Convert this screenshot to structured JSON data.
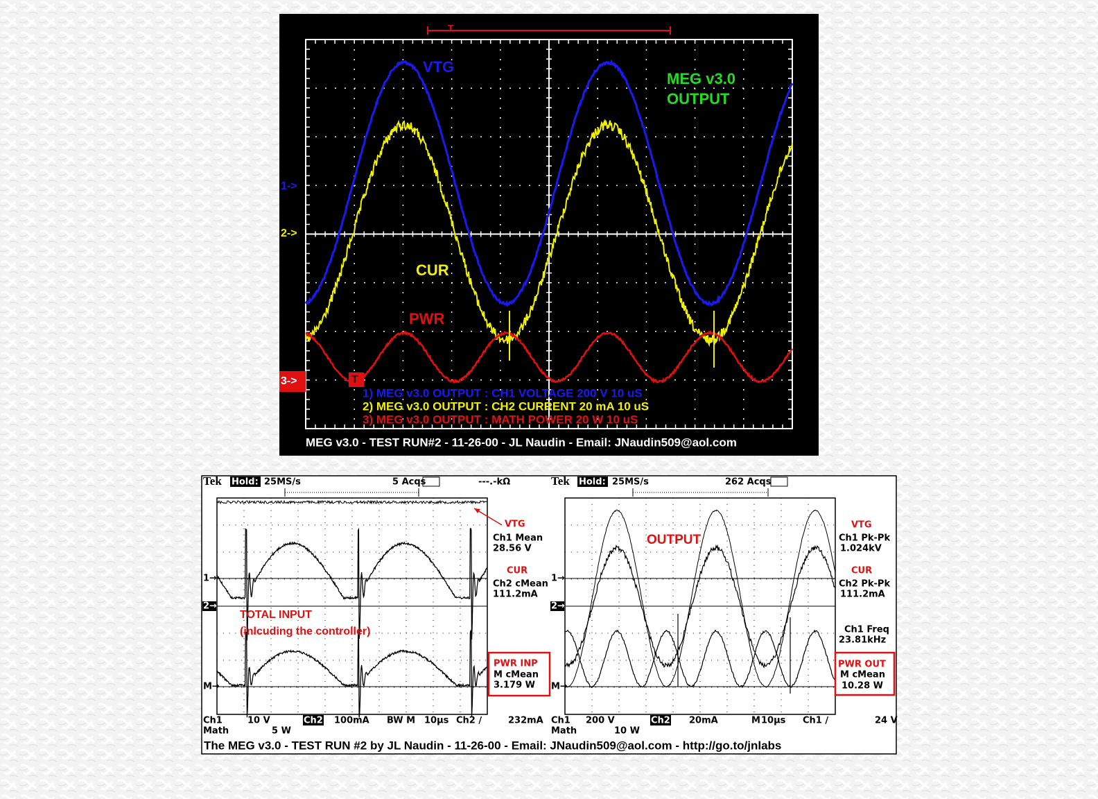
{
  "top_scope": {
    "trigger": "T",
    "trace_labels": {
      "vtg": "VTG",
      "cur": "CUR",
      "pwr": "PWR"
    },
    "title": [
      "MEG v3.0",
      "OUTPUT"
    ],
    "channel_markers": [
      "1->",
      "2->",
      "3->"
    ],
    "trigger_marker": "T",
    "legend": [
      "1) MEG v3.0 OUTPUT : CH1 VOLTAGE 200  V 10 uS",
      "2) MEG v3.0 OUTPUT : CH2 CURRENT 20 mA 10 uS",
      "3) MEG v3.0 OUTPUT : MATH POWER 20  W 10 uS"
    ],
    "footer": "MEG v3.0 - TEST RUN#2 - 11-26-00 - JL Naudin - Email: JNaudin509@aol.com"
  },
  "bottom_scope": {
    "left": {
      "header": {
        "brand": "Tek",
        "mode": "Hold:",
        "rate": "25MS/s",
        "acqs": "5 Acqs",
        "meter": "---.-kΩ"
      },
      "vtg": {
        "label": "VTG",
        "measure": "Ch1 Mean",
        "value": "28.56 V"
      },
      "cur": {
        "label": "CUR",
        "measure": "Ch2 cMean",
        "value": "111.2mA"
      },
      "pwr": {
        "label": "PWR INP",
        "measure": "M cMean",
        "value": "3.179 W"
      },
      "note": [
        "TOTAL INPUT",
        "(inlcuding the controller)"
      ],
      "markers": [
        "1→",
        "2→",
        "M→"
      ],
      "settings": [
        "Ch1",
        "10 V",
        "Ch2",
        "100mA",
        "BW M",
        "10µs",
        "Ch2 ∕",
        "232mA"
      ],
      "math": [
        "Math",
        "5 W"
      ]
    },
    "right": {
      "header": {
        "brand": "Tek",
        "mode": "Hold:",
        "rate": "25MS/s",
        "acqs": "262 Acqs"
      },
      "title": "OUTPUT",
      "vtg": {
        "label": "VTG",
        "measure": "Ch1 Pk-Pk",
        "value": "1.024kV"
      },
      "cur": {
        "label": "CUR",
        "measure": "Ch2 Pk-Pk",
        "value": "111.2mA"
      },
      "freq": {
        "measure": "Ch1 Freq",
        "value": "23.81kHz"
      },
      "pwr": {
        "label": "PWR OUT",
        "measure": "M cMean",
        "value": "10.28 W"
      },
      "markers": [
        "1→",
        "2→",
        "M→"
      ],
      "settings": [
        "Ch1",
        "200 V",
        "Ch2↓",
        "20mA",
        "M",
        "10µs",
        "Ch1 ∕",
        "24 V"
      ],
      "math": [
        "Math",
        "10 W"
      ]
    },
    "footer": "The MEG v3.0 - TEST RUN #2 by JL Naudin - 11-26-00 - Email: JNaudin509@aol.com - http://go.to/jnlabs"
  }
}
